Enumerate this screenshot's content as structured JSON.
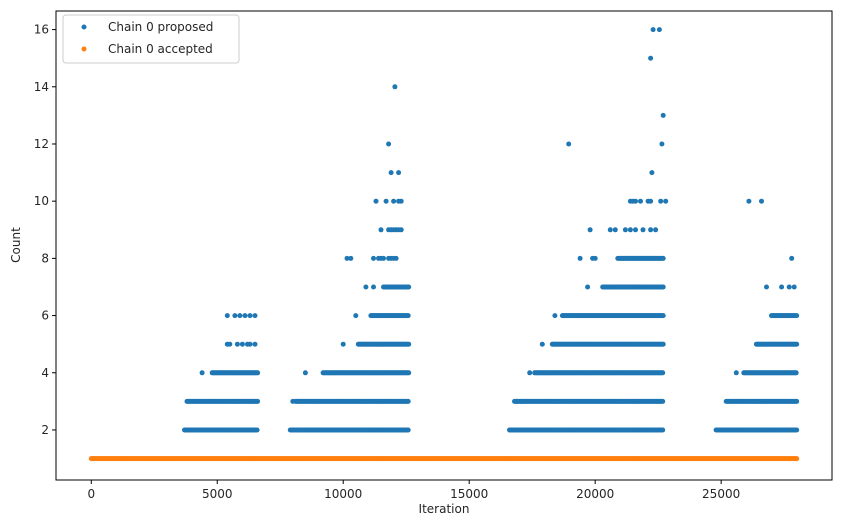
{
  "chart_data": {
    "type": "scatter",
    "title": "",
    "xlabel": "Iteration",
    "ylabel": "Count",
    "xlim": [
      -1400,
      29400
    ],
    "ylim": [
      0.25,
      16.65
    ],
    "xticks": [
      0,
      5000,
      10000,
      15000,
      20000,
      25000
    ],
    "xtick_labels": [
      "0",
      "5000",
      "10000",
      "15000",
      "20000",
      "25000"
    ],
    "yticks": [
      2,
      4,
      6,
      8,
      10,
      12,
      14,
      16
    ],
    "ytick_labels": [
      "2",
      "4",
      "6",
      "8",
      "10",
      "12",
      "14",
      "16"
    ],
    "grid": false,
    "legend_position": "top-left",
    "colors": {
      "proposed": "#1f77b4",
      "accepted": "#ff7f0e"
    },
    "series": [
      {
        "name": "Chain 0 proposed",
        "color": "#1f77b4",
        "bands": [
          {
            "x0": 3700,
            "x1": 6600,
            "y": 2
          },
          {
            "x0": 7900,
            "x1": 12600,
            "y": 2
          },
          {
            "x0": 16600,
            "x1": 22700,
            "y": 2
          },
          {
            "x0": 24800,
            "x1": 28000,
            "y": 2
          },
          {
            "x0": 3800,
            "x1": 6600,
            "y": 3
          },
          {
            "x0": 8100,
            "x1": 12600,
            "y": 3
          },
          {
            "x0": 16800,
            "x1": 22700,
            "y": 3
          },
          {
            "x0": 25200,
            "x1": 28000,
            "y": 3
          },
          {
            "x0": 4800,
            "x1": 6600,
            "y": 4
          },
          {
            "x0": 9200,
            "x1": 12600,
            "y": 4
          },
          {
            "x0": 17600,
            "x1": 22700,
            "y": 4
          },
          {
            "x0": 25900,
            "x1": 28000,
            "y": 4
          },
          {
            "x0": 10600,
            "x1": 12600,
            "y": 5
          },
          {
            "x0": 18300,
            "x1": 22700,
            "y": 5
          },
          {
            "x0": 26400,
            "x1": 28000,
            "y": 5
          },
          {
            "x0": 11100,
            "x1": 12600,
            "y": 6
          },
          {
            "x0": 18700,
            "x1": 22700,
            "y": 6
          },
          {
            "x0": 27000,
            "x1": 28000,
            "y": 6
          },
          {
            "x0": 11600,
            "x1": 12600,
            "y": 7
          },
          {
            "x0": 20300,
            "x1": 22700,
            "y": 7
          },
          {
            "x0": 20900,
            "x1": 22700,
            "y": 8
          }
        ],
        "points": [
          [
            4400,
            4
          ],
          [
            5400,
            6
          ],
          [
            5700,
            6
          ],
          [
            5900,
            6
          ],
          [
            6100,
            6
          ],
          [
            6300,
            6
          ],
          [
            6500,
            6
          ],
          [
            5400,
            5
          ],
          [
            5500,
            5
          ],
          [
            5800,
            5
          ],
          [
            6000,
            5
          ],
          [
            6200,
            5
          ],
          [
            6300,
            5
          ],
          [
            6500,
            5
          ],
          [
            8000,
            3
          ],
          [
            8500,
            4
          ],
          [
            10000,
            5
          ],
          [
            10150,
            8
          ],
          [
            10300,
            8
          ],
          [
            10500,
            6
          ],
          [
            10900,
            7
          ],
          [
            11200,
            7
          ],
          [
            11200,
            8
          ],
          [
            11400,
            8
          ],
          [
            11500,
            8
          ],
          [
            11600,
            8
          ],
          [
            11800,
            8
          ],
          [
            11900,
            8
          ],
          [
            12000,
            8
          ],
          [
            12100,
            8
          ],
          [
            11500,
            9
          ],
          [
            11800,
            9
          ],
          [
            11900,
            9
          ],
          [
            12000,
            9
          ],
          [
            12100,
            9
          ],
          [
            12200,
            9
          ],
          [
            12300,
            9
          ],
          [
            11300,
            10
          ],
          [
            11700,
            10
          ],
          [
            12000,
            10
          ],
          [
            12200,
            10
          ],
          [
            12300,
            10
          ],
          [
            11900,
            11
          ],
          [
            12200,
            11
          ],
          [
            11800,
            12
          ],
          [
            12050,
            14
          ],
          [
            16900,
            3
          ],
          [
            17100,
            3
          ],
          [
            17400,
            4
          ],
          [
            17900,
            5
          ],
          [
            18400,
            6
          ],
          [
            18950,
            12
          ],
          [
            19400,
            8
          ],
          [
            19700,
            7
          ],
          [
            19800,
            9
          ],
          [
            19900,
            8
          ],
          [
            20000,
            8
          ],
          [
            20600,
            9
          ],
          [
            20800,
            9
          ],
          [
            21200,
            9
          ],
          [
            21400,
            9
          ],
          [
            21600,
            9
          ],
          [
            21900,
            9
          ],
          [
            22200,
            9
          ],
          [
            22400,
            9
          ],
          [
            21400,
            10
          ],
          [
            21500,
            10
          ],
          [
            21600,
            10
          ],
          [
            21800,
            10
          ],
          [
            22100,
            10
          ],
          [
            22200,
            10
          ],
          [
            22600,
            10
          ],
          [
            22800,
            10
          ],
          [
            22250,
            11
          ],
          [
            22650,
            12
          ],
          [
            22700,
            13
          ],
          [
            22200,
            15
          ],
          [
            22300,
            16
          ],
          [
            22550,
            16
          ],
          [
            25600,
            4
          ],
          [
            26100,
            10
          ],
          [
            26600,
            10
          ],
          [
            26800,
            7
          ],
          [
            27400,
            7
          ],
          [
            27700,
            7
          ],
          [
            27800,
            8
          ],
          [
            27900,
            7
          ]
        ]
      },
      {
        "name": "Chain 0 accepted",
        "color": "#ff7f0e",
        "bands": [
          {
            "x0": 0,
            "x1": 28000,
            "y": 1
          }
        ],
        "points": []
      }
    ]
  }
}
